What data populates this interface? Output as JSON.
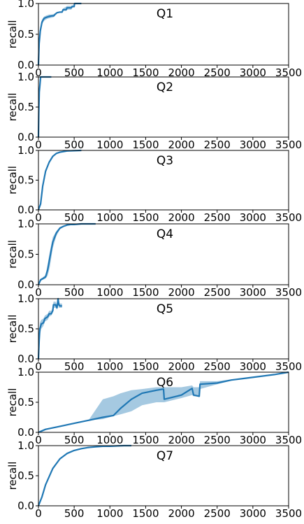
{
  "chart_data": [
    {
      "type": "line",
      "title": "Q1",
      "ylabel": "recall",
      "xlim": [
        0,
        3500
      ],
      "ylim": [
        0,
        1
      ],
      "xticks": [
        0,
        500,
        1000,
        1500,
        2000,
        2500,
        3000,
        3500
      ],
      "xtick_labels": [
        "0",
        "500",
        "1000",
        "1500",
        "2000",
        "2500",
        "3000",
        "3500"
      ],
      "yticks": [
        0,
        0.5,
        1
      ],
      "ytick_labels": [
        "0.0",
        "0.5",
        "1.0"
      ],
      "colors": {
        "line": "#1f77b4",
        "band": "#1f77b4"
      },
      "series": [
        {
          "x": [
            0,
            10,
            25,
            50,
            80,
            120,
            150,
            190,
            215,
            230,
            260,
            300,
            330,
            345,
            390,
            400,
            460,
            470,
            500,
            505,
            600
          ],
          "y": [
            0.0,
            0.35,
            0.55,
            0.7,
            0.76,
            0.78,
            0.79,
            0.8,
            0.8,
            0.82,
            0.85,
            0.86,
            0.86,
            0.9,
            0.9,
            0.93,
            0.93,
            0.95,
            0.95,
            1.0,
            1.0
          ],
          "lower": [
            0.0,
            0.3,
            0.5,
            0.66,
            0.72,
            0.75,
            0.76,
            0.77,
            0.78,
            0.8,
            0.84,
            0.86,
            0.86,
            0.88,
            0.88,
            0.9,
            0.9,
            0.93,
            0.95,
            1.0,
            1.0
          ],
          "upper": [
            0.0,
            0.4,
            0.6,
            0.74,
            0.79,
            0.81,
            0.82,
            0.82,
            0.83,
            0.84,
            0.86,
            0.86,
            0.87,
            0.92,
            0.95,
            0.96,
            0.96,
            0.97,
            0.97,
            1.0,
            1.0
          ]
        }
      ]
    },
    {
      "type": "line",
      "title": "Q2",
      "ylabel": "recall",
      "xlim": [
        0,
        3500
      ],
      "ylim": [
        0,
        1
      ],
      "xticks": [
        0,
        500,
        1000,
        1500,
        2000,
        2500,
        3000,
        3500
      ],
      "xtick_labels": [
        "0",
        "500",
        "1000",
        "1500",
        "2000",
        "2500",
        "3000",
        "3500"
      ],
      "yticks": [
        0,
        0.5,
        1
      ],
      "ytick_labels": [
        "0.0",
        "0.5",
        "1.0"
      ],
      "colors": {
        "line": "#1f77b4",
        "band": "#1f77b4"
      },
      "series": [
        {
          "x": [
            0,
            5,
            12,
            20,
            30,
            40,
            60,
            100,
            180
          ],
          "y": [
            0.0,
            0.4,
            0.75,
            0.85,
            1.0,
            1.0,
            1.0,
            1.0,
            1.0
          ],
          "lower": [
            0.0,
            0.3,
            0.6,
            0.8,
            0.95,
            1.0,
            1.0,
            1.0,
            1.0
          ],
          "upper": [
            0.0,
            0.5,
            0.85,
            0.95,
            1.0,
            1.0,
            1.0,
            1.0,
            1.0
          ]
        }
      ]
    },
    {
      "type": "line",
      "title": "Q3",
      "ylabel": "recall",
      "xlim": [
        0,
        3500
      ],
      "ylim": [
        0,
        1
      ],
      "xticks": [
        0,
        500,
        1000,
        1500,
        2000,
        2500,
        3000,
        3500
      ],
      "xtick_labels": [
        "0",
        "500",
        "1000",
        "1500",
        "2000",
        "2500",
        "3000",
        "3500"
      ],
      "yticks": [
        0,
        0.5,
        1
      ],
      "ytick_labels": [
        "0.0",
        "0.5",
        "1.0"
      ],
      "colors": {
        "line": "#1f77b4",
        "band": "#1f77b4"
      },
      "series": [
        {
          "x": [
            0,
            30,
            60,
            100,
            150,
            200,
            250,
            300,
            350,
            400,
            500,
            600
          ],
          "y": [
            0.0,
            0.1,
            0.4,
            0.65,
            0.8,
            0.9,
            0.95,
            0.97,
            0.98,
            0.99,
            0.995,
            1.0
          ],
          "lower": [
            0.0,
            0.08,
            0.37,
            0.63,
            0.79,
            0.89,
            0.94,
            0.97,
            0.98,
            0.99,
            0.995,
            1.0
          ],
          "upper": [
            0.0,
            0.12,
            0.43,
            0.67,
            0.81,
            0.91,
            0.96,
            0.97,
            0.98,
            0.99,
            0.995,
            1.0
          ]
        }
      ]
    },
    {
      "type": "line",
      "title": "Q4",
      "ylabel": "recall",
      "xlim": [
        0,
        3500
      ],
      "ylim": [
        0,
        1
      ],
      "xticks": [
        0,
        500,
        1000,
        1500,
        2000,
        2500,
        3000,
        3500
      ],
      "xtick_labels": [
        "0",
        "500",
        "1000",
        "1500",
        "2000",
        "2500",
        "3000",
        "3500"
      ],
      "yticks": [
        0,
        0.5,
        1
      ],
      "ytick_labels": [
        "0.0",
        "0.5",
        "1.0"
      ],
      "colors": {
        "line": "#1f77b4",
        "band": "#1f77b4"
      },
      "series": [
        {
          "x": [
            0,
            30,
            60,
            100,
            130,
            160,
            200,
            250,
            300,
            350,
            400,
            450,
            500,
            600,
            800
          ],
          "y": [
            0.0,
            0.08,
            0.1,
            0.13,
            0.25,
            0.45,
            0.7,
            0.85,
            0.93,
            0.96,
            0.98,
            0.99,
            0.99,
            1.0,
            1.0
          ],
          "lower": [
            0.0,
            0.06,
            0.08,
            0.1,
            0.15,
            0.3,
            0.6,
            0.8,
            0.91,
            0.95,
            0.97,
            0.98,
            0.99,
            1.0,
            1.0
          ],
          "upper": [
            0.0,
            0.1,
            0.12,
            0.16,
            0.35,
            0.55,
            0.78,
            0.88,
            0.95,
            0.97,
            0.99,
            0.99,
            0.99,
            1.0,
            1.0
          ]
        }
      ]
    },
    {
      "type": "line",
      "title": "Q5",
      "ylabel": "recall",
      "xlim": [
        0,
        3500
      ],
      "ylim": [
        0,
        1
      ],
      "xticks": [
        0,
        500,
        1000,
        1500,
        2000,
        2500,
        3000,
        3500
      ],
      "xtick_labels": [
        "0",
        "500",
        "1000",
        "1500",
        "2000",
        "2500",
        "3000",
        "3500"
      ],
      "yticks": [
        0,
        0.5,
        1
      ],
      "ytick_labels": [
        "0.0",
        "0.5",
        "1.0"
      ],
      "colors": {
        "line": "#1f77b4",
        "band": "#1f77b4"
      },
      "series": [
        {
          "x": [
            0,
            10,
            20,
            40,
            70,
            90,
            130,
            150,
            180,
            200,
            210,
            240,
            260,
            275,
            285,
            300,
            330
          ],
          "y": [
            0.0,
            0.3,
            0.5,
            0.58,
            0.6,
            0.67,
            0.7,
            0.75,
            0.75,
            0.8,
            0.9,
            0.9,
            0.85,
            1.0,
            0.9,
            0.88,
            0.88
          ],
          "lower": [
            0.0,
            0.2,
            0.4,
            0.5,
            0.55,
            0.62,
            0.65,
            0.7,
            0.72,
            0.78,
            0.85,
            0.85,
            0.82,
            0.9,
            0.85,
            0.85,
            0.85
          ],
          "upper": [
            0.0,
            0.4,
            0.6,
            0.65,
            0.67,
            0.72,
            0.75,
            0.8,
            0.8,
            0.85,
            0.95,
            0.95,
            0.9,
            1.0,
            0.95,
            0.92,
            0.92
          ]
        }
      ]
    },
    {
      "type": "line",
      "title": "Q6",
      "ylabel": "recall",
      "xlim": [
        0,
        3500
      ],
      "ylim": [
        0,
        1
      ],
      "xticks": [
        0,
        500,
        1000,
        1500,
        2000,
        2500,
        3000,
        3500
      ],
      "xtick_labels": [
        "0",
        "500",
        "1000",
        "1500",
        "2000",
        "2500",
        "3000",
        "3500"
      ],
      "yticks": [
        0,
        0.5,
        1
      ],
      "ytick_labels": [
        "0.0",
        "0.5",
        "1.0"
      ],
      "colors": {
        "line": "#1f77b4",
        "band": "#1f77b4"
      },
      "series": [
        {
          "x": [
            0,
            100,
            300,
            500,
            700,
            900,
            1050,
            1150,
            1300,
            1450,
            1650,
            1750,
            1760,
            2000,
            2150,
            2170,
            2250,
            2260,
            2500,
            2700,
            2900,
            3100,
            3300,
            3500
          ],
          "y": [
            0.0,
            0.05,
            0.1,
            0.15,
            0.2,
            0.25,
            0.28,
            0.4,
            0.55,
            0.65,
            0.7,
            0.72,
            0.55,
            0.62,
            0.73,
            0.62,
            0.6,
            0.8,
            0.82,
            0.87,
            0.9,
            0.93,
            0.96,
            1.0
          ],
          "lower": [
            0.0,
            0.05,
            0.1,
            0.15,
            0.2,
            0.22,
            0.27,
            0.3,
            0.35,
            0.45,
            0.5,
            0.5,
            0.5,
            0.57,
            0.62,
            0.6,
            0.6,
            0.72,
            0.8,
            0.86,
            0.9,
            0.93,
            0.96,
            1.0
          ],
          "upper": [
            0.0,
            0.05,
            0.1,
            0.15,
            0.2,
            0.55,
            0.6,
            0.65,
            0.7,
            0.72,
            0.75,
            0.75,
            0.75,
            0.75,
            0.78,
            0.75,
            0.75,
            0.85,
            0.85,
            0.88,
            0.9,
            0.93,
            0.96,
            1.0
          ]
        }
      ]
    },
    {
      "type": "line",
      "title": "Q7",
      "ylabel": "recall",
      "xlim": [
        0,
        3500
      ],
      "ylim": [
        0,
        1
      ],
      "xticks": [
        0,
        500,
        1000,
        1500,
        2000,
        2500,
        3000,
        3500
      ],
      "xtick_labels": [
        "0",
        "500",
        "1000",
        "1500",
        "2000",
        "2500",
        "3000",
        "3500"
      ],
      "yticks": [
        0,
        0.5,
        1
      ],
      "ytick_labels": [
        "0.0",
        "0.5",
        "1.0"
      ],
      "colors": {
        "line": "#1f77b4",
        "band": "#1f77b4"
      },
      "series": [
        {
          "x": [
            0,
            50,
            100,
            200,
            300,
            400,
            500,
            600,
            700,
            800,
            900,
            1000,
            1100,
            1200,
            1300
          ],
          "y": [
            0.0,
            0.15,
            0.35,
            0.62,
            0.78,
            0.87,
            0.92,
            0.95,
            0.97,
            0.98,
            0.99,
            0.99,
            0.995,
            1.0,
            1.0
          ],
          "lower": [
            0.0,
            0.13,
            0.33,
            0.6,
            0.77,
            0.86,
            0.91,
            0.95,
            0.97,
            0.98,
            0.99,
            0.99,
            0.995,
            1.0,
            1.0
          ],
          "upper": [
            0.0,
            0.17,
            0.37,
            0.64,
            0.79,
            0.88,
            0.93,
            0.95,
            0.97,
            0.98,
            0.99,
            0.99,
            0.995,
            1.0,
            1.0
          ]
        }
      ]
    }
  ]
}
